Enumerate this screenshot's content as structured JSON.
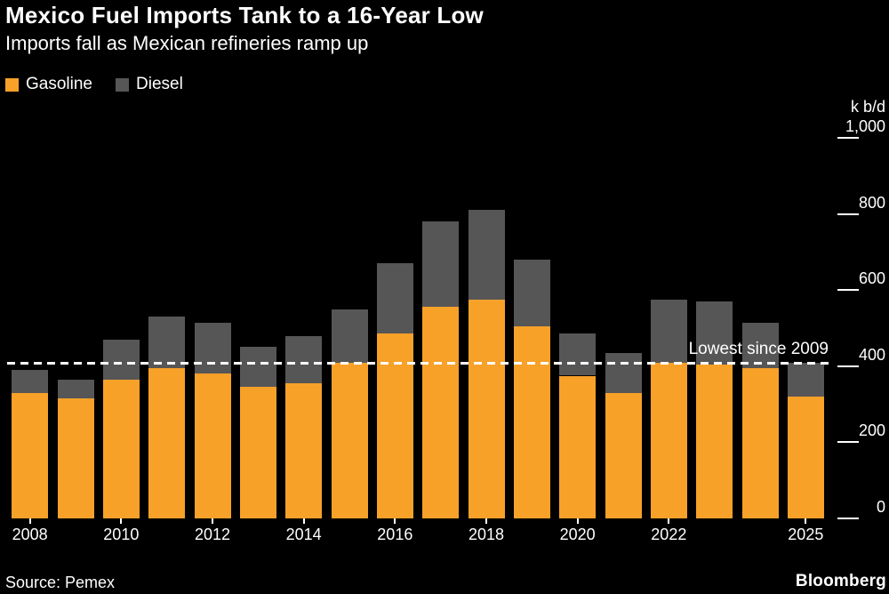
{
  "header": {
    "title": "Mexico Fuel Imports Tank to a 16-Year Low",
    "subtitle": "Imports fall as Mexican refineries ramp up"
  },
  "legend": {
    "items": [
      {
        "label": "Gasoline",
        "color": "#F7A129"
      },
      {
        "label": "Diesel",
        "color": "#565656"
      }
    ]
  },
  "footer": {
    "source": "Source: Pemex",
    "brand": "Bloomberg"
  },
  "chart_data": {
    "type": "bar",
    "stacked": true,
    "title": "Mexico Fuel Imports Tank to a 16-Year Low",
    "subtitle": "Imports fall as Mexican refineries ramp up",
    "unit_label": "k b/d",
    "categories": [
      "2008",
      "2009",
      "2010",
      "2011",
      "2012",
      "2013",
      "2014",
      "2015",
      "2016",
      "2017",
      "2018",
      "2019",
      "2020",
      "2021",
      "2022",
      "2023",
      "2024",
      "2025"
    ],
    "series": [
      {
        "name": "Gasoline",
        "color": "#F7A129",
        "values": [
          330,
          315,
          365,
          395,
          380,
          345,
          355,
          410,
          485,
          555,
          575,
          505,
          375,
          330,
          410,
          405,
          395,
          320
        ]
      },
      {
        "name": "Diesel",
        "color": "#565656",
        "values": [
          60,
          50,
          105,
          135,
          135,
          105,
          125,
          140,
          185,
          225,
          235,
          175,
          110,
          105,
          165,
          165,
          120,
          90
        ]
      }
    ],
    "ylim": [
      0,
      1000
    ],
    "ytick_values": [
      0,
      200,
      400,
      600,
      800,
      1000
    ],
    "ytick_labels": [
      "0",
      "200",
      "400",
      "600",
      "800",
      "1,000"
    ],
    "x_labeled_categories": [
      "2008",
      "2010",
      "2012",
      "2014",
      "2016",
      "2018",
      "2020",
      "2022",
      "2025"
    ],
    "annotation_line": {
      "value": 410,
      "label": "Lowest since 2009"
    },
    "legend_position": "top-left",
    "grid": false,
    "background": "#000000",
    "text_color": "#ffffff"
  }
}
